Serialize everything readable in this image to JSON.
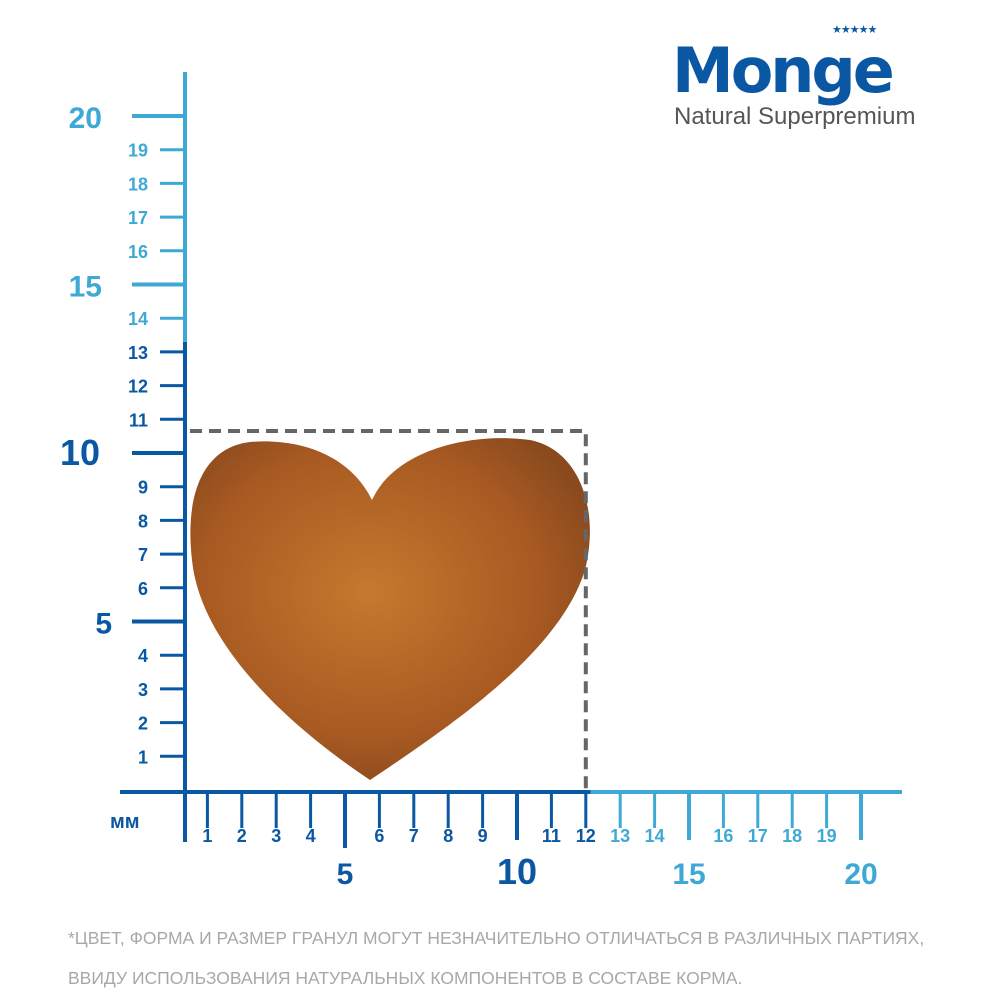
{
  "brand": {
    "name": "Monge",
    "tagline": "Natural Superpremium",
    "stars": "★★★★★"
  },
  "ruler": {
    "unit": "мм",
    "x_max": 20,
    "y_max": 20,
    "dark_range_max_x": 12,
    "dark_range_max_y": 13,
    "major_ticks": [
      5,
      10,
      15,
      20
    ],
    "colors": {
      "dark": "#0a57a4",
      "light": "#3fa9d6",
      "dash": "#666666",
      "kibble": "#b5641f"
    }
  },
  "kibble": {
    "shape": "heart",
    "width_mm": 12,
    "height_mm": 10
  },
  "footnote": [
    "*Цвет, форма и размер гранул могут незначительно отличаться в различных партиях,",
    "ввиду использования натуральных компонентов в составе корма."
  ]
}
